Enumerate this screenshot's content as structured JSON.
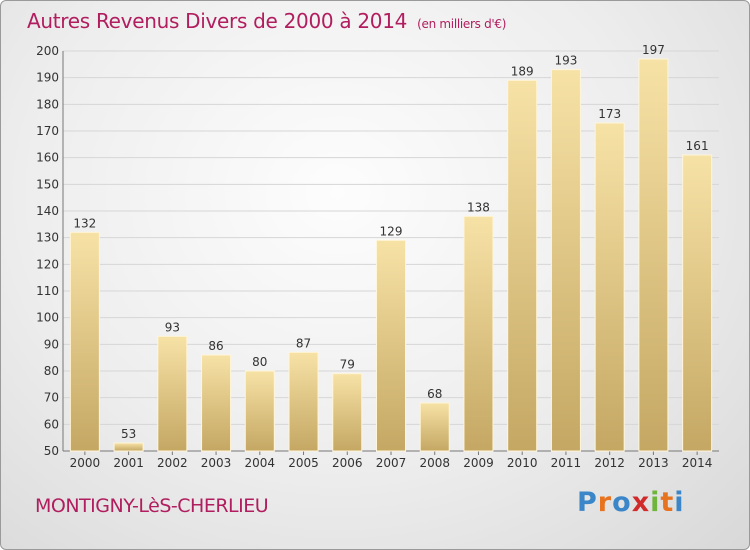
{
  "header": {
    "title": "Autres Revenus Divers de 2000 à 2014",
    "unit": "(en milliers d'€)"
  },
  "footer": {
    "city": "MONTIGNY-LèS-CHERLIEU",
    "logo": "Proxiti"
  },
  "colors": {
    "accent": "#b11d5e",
    "bar_light": "#f5dc9e",
    "bar_dark": "#c7aa66",
    "grid": "#d6d6d6"
  },
  "chart_data": {
    "type": "bar",
    "title": "Autres Revenus Divers de 2000 à 2014",
    "subtitle": "(en milliers d'€)",
    "xlabel": "",
    "ylabel": "",
    "categories": [
      "2000",
      "2001",
      "2002",
      "2003",
      "2004",
      "2005",
      "2006",
      "2007",
      "2008",
      "2009",
      "2010",
      "2011",
      "2012",
      "2013",
      "2014"
    ],
    "values": [
      132,
      53,
      93,
      86,
      80,
      87,
      79,
      129,
      68,
      138,
      189,
      193,
      173,
      197,
      161
    ],
    "ylim": [
      50,
      200
    ],
    "yticks": [
      50,
      60,
      70,
      80,
      90,
      100,
      110,
      120,
      130,
      140,
      150,
      160,
      170,
      180,
      190,
      200
    ],
    "grid": true,
    "legend": "none"
  }
}
